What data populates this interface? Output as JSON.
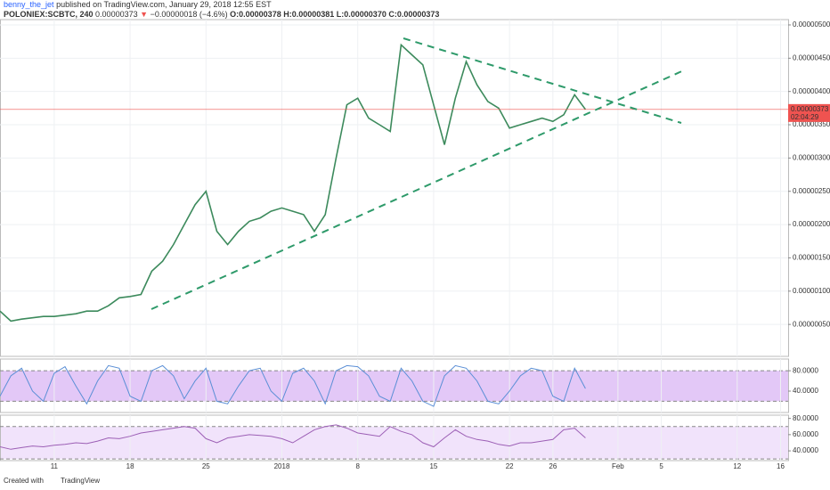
{
  "header": {
    "author": "benny_the_jet",
    "published": "published on TradingView.com, January 29, 2018 12:55 EST",
    "symbol": "POLONIEX:SCBTC, 240",
    "last": "0.00000373",
    "arrow": "▼",
    "change": "−0.00000018 (−4.6%)",
    "open": "O:0.00000378",
    "high": "H:0.00000381",
    "low": "L:0.00000370",
    "close": "C:0.00000373"
  },
  "chart_data": [
    {
      "type": "line",
      "color": "#3c8a5c",
      "x": [
        0,
        1,
        2,
        3,
        4,
        5,
        6,
        7,
        8,
        9,
        10,
        11,
        12,
        13,
        14,
        15,
        16,
        17,
        18,
        19,
        20,
        21,
        22,
        23,
        24,
        25,
        26,
        27,
        28,
        29,
        30,
        31,
        32,
        33,
        34,
        35,
        36,
        37,
        38,
        39,
        40,
        41,
        42,
        43,
        44,
        45,
        46,
        47,
        48,
        49,
        50,
        51,
        52,
        53,
        54
      ],
      "values": [
        7e-07,
        5.5e-07,
        5.8e-07,
        6e-07,
        6.2e-07,
        6.2e-07,
        6.4e-07,
        6.6e-07,
        7e-07,
        7e-07,
        7.8e-07,
        9e-07,
        9.2e-07,
        9.5e-07,
        1.3e-06,
        1.45e-06,
        1.7e-06,
        2e-06,
        2.3e-06,
        2.5e-06,
        1.9e-06,
        1.7e-06,
        1.9e-06,
        2.05e-06,
        2.1e-06,
        2.2e-06,
        2.25e-06,
        2.2e-06,
        2.15e-06,
        1.9e-06,
        2.15e-06,
        3e-06,
        3.8e-06,
        3.9e-06,
        3.6e-06,
        3.5e-06,
        3.4e-06,
        4.7e-06,
        4.55e-06,
        4.4e-06,
        3.8e-06,
        3.2e-06,
        3.9e-06,
        4.45e-06,
        4.1e-06,
        3.85e-06,
        3.75e-06,
        3.45e-06,
        3.5e-06,
        3.55e-06,
        3.6e-06,
        3.55e-06,
        3.65e-06,
        3.95e-06,
        3.73e-06
      ],
      "xlim": [
        0,
        72.7
      ],
      "ylim": [
        2e-08,
        5.08e-06
      ],
      "yticks": [
        {
          "value": 5e-07,
          "label": "0.00000050"
        },
        {
          "value": 1e-06,
          "label": "0.00000100"
        },
        {
          "value": 1.5e-06,
          "label": "0.00000150"
        },
        {
          "value": 2e-06,
          "label": "0.00000200"
        },
        {
          "value": 2.5e-06,
          "label": "0.00000250"
        },
        {
          "value": 3e-06,
          "label": "0.00000300"
        },
        {
          "value": 3.5e-06,
          "label": "0.00000350"
        },
        {
          "value": 4e-06,
          "label": "0.00000400"
        },
        {
          "value": 4.5e-06,
          "label": "0.00000450"
        },
        {
          "value": 5e-06,
          "label": "0.00000500"
        }
      ],
      "xticks": [
        {
          "value": 5,
          "label": "11"
        },
        {
          "value": 12,
          "label": "18"
        },
        {
          "value": 19,
          "label": "25"
        },
        {
          "value": 26,
          "label": "2018"
        },
        {
          "value": 33,
          "label": "8"
        },
        {
          "value": 40,
          "label": "15"
        },
        {
          "value": 47,
          "label": "22"
        },
        {
          "value": 51,
          "label": "26"
        },
        {
          "value": 57,
          "label": "Feb"
        },
        {
          "value": 61,
          "label": "5"
        },
        {
          "value": 68,
          "label": "12"
        },
        {
          "value": 72,
          "label": "16"
        }
      ],
      "price_marker": {
        "value": 3.73e-06,
        "label": "0.00000373",
        "countdown": "02:04:29"
      }
    },
    {
      "type": "line",
      "color": "#5b8fd6",
      "x": [
        0,
        1,
        2,
        3,
        4,
        5,
        6,
        7,
        8,
        9,
        10,
        11,
        12,
        13,
        14,
        15,
        16,
        17,
        18,
        19,
        20,
        21,
        22,
        23,
        24,
        25,
        26,
        27,
        28,
        29,
        30,
        31,
        32,
        33,
        34,
        35,
        36,
        37,
        38,
        39,
        40,
        41,
        42,
        43,
        44,
        45,
        46,
        47,
        48,
        49,
        50,
        51,
        52,
        53,
        54
      ],
      "values": [
        30,
        70,
        85,
        40,
        20,
        75,
        88,
        50,
        15,
        60,
        90,
        85,
        30,
        20,
        80,
        90,
        70,
        25,
        60,
        85,
        20,
        15,
        50,
        80,
        85,
        40,
        20,
        75,
        85,
        60,
        15,
        80,
        90,
        88,
        70,
        30,
        20,
        85,
        60,
        20,
        10,
        70,
        90,
        85,
        60,
        20,
        15,
        40,
        70,
        85,
        80,
        30,
        20,
        85,
        45
      ],
      "xlim": [
        0,
        72.7
      ],
      "ylim": [
        -2,
        103
      ],
      "band": [
        20,
        80
      ],
      "yticks": [
        {
          "value": 80,
          "label": "80.0000"
        },
        {
          "value": 40,
          "label": "40.0000"
        }
      ]
    },
    {
      "type": "line",
      "color": "#9c5fb5",
      "x": [
        0,
        1,
        2,
        3,
        4,
        5,
        6,
        7,
        8,
        9,
        10,
        11,
        12,
        13,
        14,
        15,
        16,
        17,
        18,
        19,
        20,
        21,
        22,
        23,
        24,
        25,
        26,
        27,
        28,
        29,
        30,
        31,
        32,
        33,
        34,
        35,
        36,
        37,
        38,
        39,
        40,
        41,
        42,
        43,
        44,
        45,
        46,
        47,
        48,
        49,
        50,
        51,
        52,
        53,
        54
      ],
      "values": [
        45,
        42,
        44,
        46,
        45,
        47,
        48,
        50,
        49,
        52,
        56,
        55,
        58,
        62,
        64,
        66,
        68,
        70,
        68,
        55,
        50,
        56,
        58,
        60,
        59,
        58,
        55,
        50,
        58,
        66,
        70,
        72,
        68,
        62,
        60,
        58,
        70,
        64,
        60,
        50,
        45,
        56,
        66,
        58,
        54,
        52,
        48,
        46,
        50,
        50,
        52,
        54,
        66,
        68,
        56
      ],
      "xlim": [
        0,
        72.7
      ],
      "ylim": [
        28,
        84
      ],
      "band": [
        30,
        70
      ],
      "yticks": [
        {
          "value": 80,
          "label": "80.0000"
        },
        {
          "value": 60,
          "label": "60.0000"
        },
        {
          "value": 40,
          "label": "40.0000"
        }
      ]
    }
  ],
  "footer": {
    "created": "Created with",
    "brand": "TradingView"
  }
}
